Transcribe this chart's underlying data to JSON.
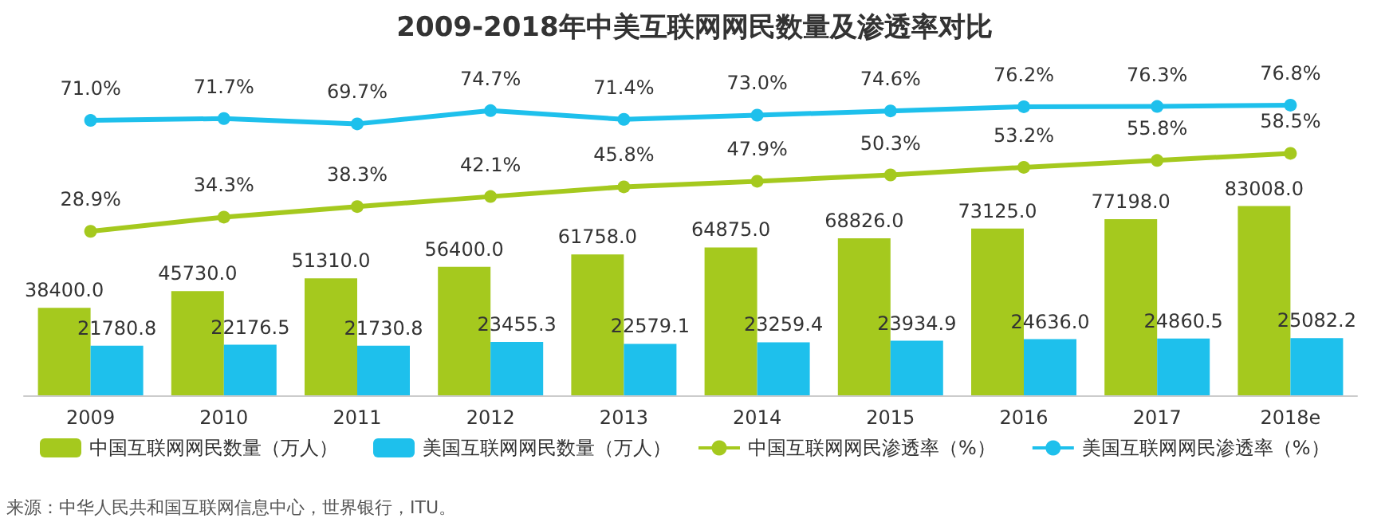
{
  "chart_data": [
    {
      "type": "line",
      "title": "2009-2018年中美互联网网民数量及渗透率对比",
      "categories": [
        null,
        null,
        null,
        null,
        null,
        null,
        null,
        null,
        null,
        null
      ],
      "series": [
        {
          "name": "中国互联网网民渗透率（%）",
          "color": "#a5c91e",
          "values": [
            28.9,
            34.3,
            38.3,
            42.1,
            45.8,
            47.9,
            50.3,
            53.2,
            55.8,
            58.5
          ],
          "value_labels": [
            "28.9%",
            "34.3%",
            "38.3%",
            "42.1%",
            "45.8%",
            "47.9%",
            "50.3%",
            "53.2%",
            "55.8%",
            "58.5%"
          ]
        },
        {
          "name": "美国互联网网民渗透率（%）",
          "color": "#1ec0ec",
          "values": [
            71.0,
            71.7,
            69.7,
            74.7,
            71.4,
            73.0,
            74.6,
            76.2,
            76.3,
            76.8
          ],
          "value_labels": [
            "71.0%",
            "71.7%",
            "69.7%",
            "74.7%",
            "71.4%",
            "73.0%",
            "74.6%",
            "76.2%",
            "76.3%",
            "76.8%"
          ]
        }
      ],
      "legend": "bottom",
      "marker": "circle",
      "line_style": "solid",
      "tick_labels": false
    },
    {
      "type": "bar",
      "categories": [
        "2009",
        "2010",
        "2011",
        "2012",
        "2013",
        "2014",
        "2015",
        "2016",
        "2017",
        "2018e"
      ],
      "series": [
        {
          "name": "中国互联网网民数量（万人）",
          "color": "#a5c91e",
          "values": [
            38400.0,
            45730.0,
            51310.0,
            56400.0,
            61758.0,
            64875.0,
            68826.0,
            73125.0,
            77198.0,
            83008.0
          ],
          "value_labels": [
            "38400.0",
            "45730.0",
            "51310.0",
            "56400.0",
            "61758.0",
            "64875.0",
            "68826.0",
            "73125.0",
            "77198.0",
            "83008.0"
          ]
        },
        {
          "name": "美国互联网网民数量（万人）",
          "color": "#1ec0ec",
          "values": [
            21780.8,
            22176.5,
            21730.8,
            23455.3,
            22579.1,
            23259.4,
            23934.9,
            24636.0,
            24860.5,
            25082.2
          ],
          "value_labels": [
            "21780.8",
            "22176.5",
            "21730.8",
            "23455.3",
            "22579.1",
            "23259.4",
            "23934.9",
            "24636.0",
            "24860.5",
            "25082.2"
          ]
        }
      ],
      "legend": "bottom",
      "tick_labels": "x",
      "annotations": [
        "来源：中华人民共和国互联网信息中心，世界银行，ITU。"
      ]
    }
  ]
}
